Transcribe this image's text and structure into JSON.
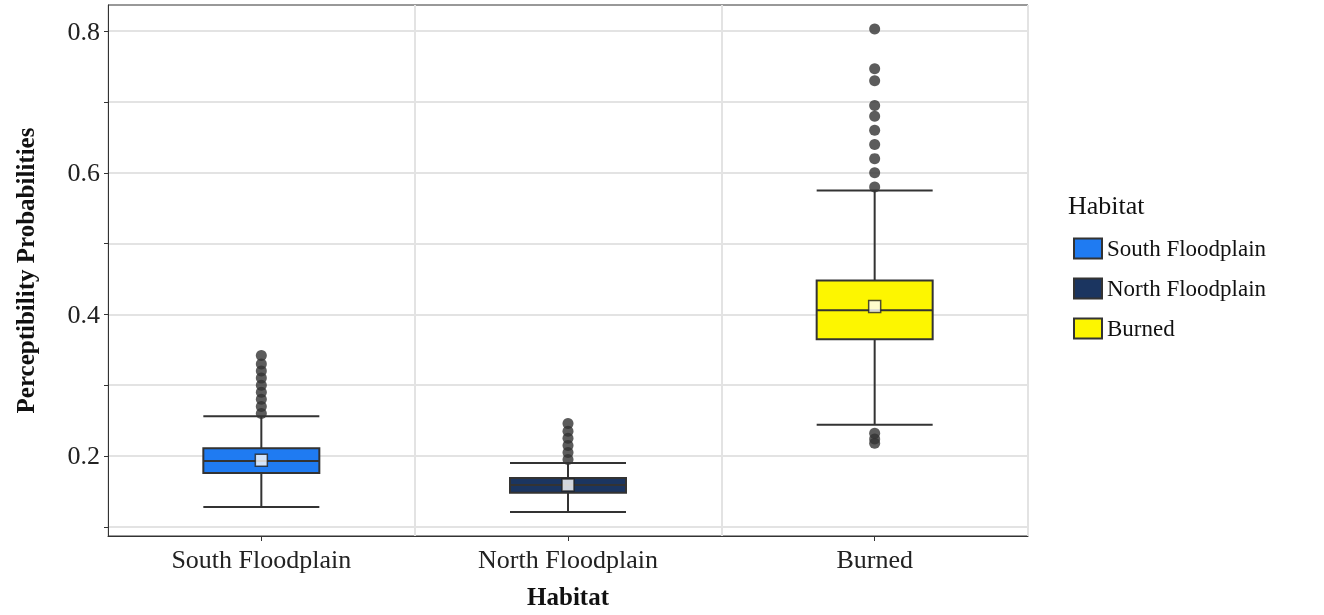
{
  "chart_data": {
    "type": "box",
    "xlabel": "Habitat",
    "ylabel": "Perceptibility Probabilities",
    "legend_title": "Habitat",
    "legend": "right",
    "grid": true,
    "categories": [
      "South Floodplain",
      "North Floodplain",
      "Burned"
    ],
    "ylim": [
      0.087,
      0.837
    ],
    "yticks": [
      {
        "value": 0.1,
        "label": null
      },
      0.2,
      {
        "value": 0.3,
        "label": null
      },
      0.4,
      {
        "value": 0.5,
        "label": null
      },
      0.6,
      {
        "value": 0.7,
        "label": null
      },
      0.8
    ],
    "series": [
      {
        "name": "South Floodplain",
        "color": "#1f7bf2",
        "boxes": [
          {
            "low": 0.128,
            "q1": 0.176,
            "median": 0.193,
            "q3": 0.211,
            "high": 0.256,
            "outliers": [
              0.26,
              0.27,
              0.28,
              0.29,
              0.3,
              0.31,
              0.32,
              0.33,
              0.342
            ]
          },
          null,
          null
        ]
      },
      {
        "name": "North Floodplain",
        "color": "#1b3560",
        "boxes": [
          null,
          {
            "low": 0.121,
            "q1": 0.148,
            "median": 0.159,
            "q3": 0.169,
            "high": 0.19,
            "outliers": [
              0.195,
              0.205,
              0.215,
              0.225,
              0.235,
              0.246
            ]
          },
          null
        ]
      },
      {
        "name": "Burned",
        "color": "#fdf600",
        "boxes": [
          null,
          null,
          {
            "low": 0.244,
            "q1": 0.365,
            "median": 0.406,
            "q3": 0.448,
            "high": 0.575,
            "outliers": [
              0.218,
              0.224,
              0.232,
              0.58,
              0.6,
              0.62,
              0.64,
              0.66,
              0.68,
              0.695,
              0.73,
              0.747,
              0.803
            ]
          }
        ]
      },
      {
        "type": "scatter",
        "x": [
          "South Floodplain",
          "North Floodplain",
          "Burned"
        ],
        "values": [
          0.194,
          0.159,
          0.411
        ],
        "color": "#ffffff",
        "marker": "square"
      }
    ]
  }
}
